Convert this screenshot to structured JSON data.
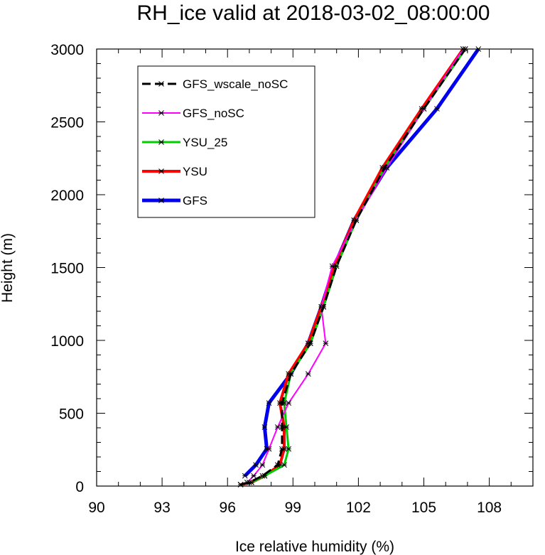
{
  "chart_data": {
    "type": "line",
    "title": "RH_ice valid at 2018-03-02_08:00:00",
    "xlabel": "Ice relative humidity (%)",
    "ylabel": "Height (m)",
    "xlim": [
      90,
      110
    ],
    "ylim": [
      0,
      3000
    ],
    "xticks": [
      "90",
      "93",
      "96",
      "99",
      "102",
      "105",
      "108"
    ],
    "yticks": [
      "0",
      "500",
      "1000",
      "1500",
      "2000",
      "2500",
      "3000"
    ],
    "legend_position": "upper-left",
    "grid": false,
    "series": [
      {
        "name": "GFS_wscale_noSC",
        "color": "#000000",
        "dashed": true,
        "width": 3,
        "points": [
          [
            96.6,
            10
          ],
          [
            97.0,
            25
          ],
          [
            97.6,
            70
          ],
          [
            98.3,
            145
          ],
          [
            98.5,
            255
          ],
          [
            98.5,
            405
          ],
          [
            98.5,
            570
          ],
          [
            98.9,
            770
          ],
          [
            99.8,
            980
          ],
          [
            100.4,
            1230
          ],
          [
            101.0,
            1510
          ],
          [
            101.9,
            1825
          ],
          [
            103.2,
            2185
          ],
          [
            105.0,
            2590
          ],
          [
            106.9,
            3000
          ]
        ]
      },
      {
        "name": "GFS_noSC",
        "color": "#ff00ff",
        "dashed": false,
        "width": 2,
        "points": [
          [
            96.6,
            10
          ],
          [
            96.9,
            25
          ],
          [
            97.2,
            70
          ],
          [
            97.6,
            145
          ],
          [
            97.9,
            255
          ],
          [
            98.3,
            405
          ],
          [
            98.8,
            570
          ],
          [
            99.7,
            770
          ],
          [
            100.5,
            980
          ],
          [
            100.3,
            1230
          ],
          [
            100.8,
            1510
          ],
          [
            101.9,
            1825
          ],
          [
            103.3,
            2185
          ],
          [
            105.0,
            2590
          ],
          [
            106.8,
            3000
          ]
        ]
      },
      {
        "name": "YSU_25",
        "color": "#00cc00",
        "dashed": false,
        "width": 3,
        "points": [
          [
            96.6,
            10
          ],
          [
            97.1,
            25
          ],
          [
            97.7,
            70
          ],
          [
            98.6,
            145
          ],
          [
            98.8,
            255
          ],
          [
            98.7,
            405
          ],
          [
            98.6,
            570
          ],
          [
            98.9,
            770
          ],
          [
            99.8,
            980
          ],
          [
            100.4,
            1230
          ],
          [
            101.0,
            1510
          ],
          [
            101.9,
            1825
          ],
          [
            103.2,
            2185
          ],
          [
            105.0,
            2590
          ],
          [
            106.9,
            3000
          ]
        ]
      },
      {
        "name": "YSU",
        "color": "#ff0000",
        "dashed": false,
        "width": 4,
        "points": [
          [
            96.6,
            10
          ],
          [
            97.1,
            25
          ],
          [
            97.7,
            70
          ],
          [
            98.4,
            145
          ],
          [
            98.6,
            255
          ],
          [
            98.6,
            405
          ],
          [
            98.4,
            570
          ],
          [
            98.8,
            770
          ],
          [
            99.7,
            980
          ],
          [
            100.3,
            1230
          ],
          [
            100.9,
            1510
          ],
          [
            101.8,
            1825
          ],
          [
            103.1,
            2185
          ],
          [
            104.9,
            2590
          ],
          [
            106.8,
            3000
          ]
        ]
      },
      {
        "name": "GFS",
        "color": "#0000ee",
        "dashed": false,
        "width": 5,
        "points": [
          [
            96.8,
            70
          ],
          [
            97.3,
            145
          ],
          [
            97.8,
            255
          ],
          [
            97.7,
            405
          ],
          [
            97.9,
            570
          ],
          [
            98.9,
            770
          ],
          [
            99.7,
            980
          ],
          [
            100.3,
            1230
          ],
          [
            100.9,
            1510
          ],
          [
            101.8,
            1825
          ],
          [
            103.3,
            2185
          ],
          [
            105.6,
            2590
          ],
          [
            107.5,
            3000
          ]
        ]
      }
    ]
  }
}
